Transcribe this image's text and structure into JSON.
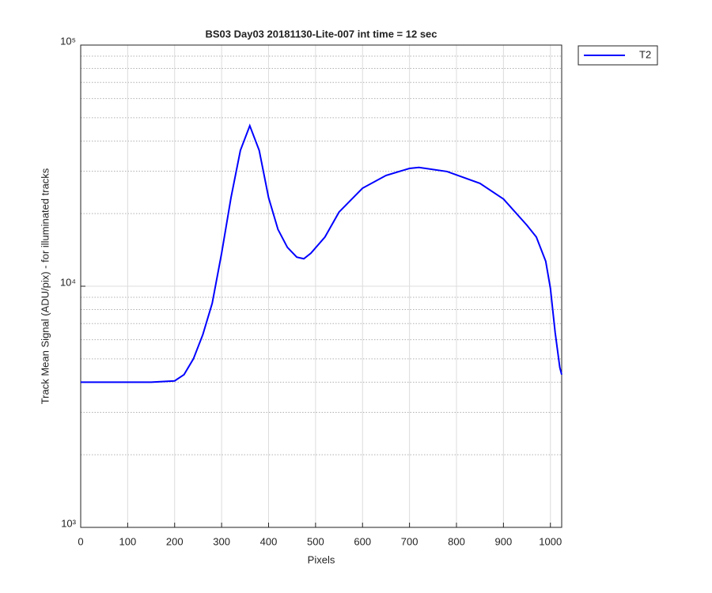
{
  "chart_data": {
    "type": "line",
    "title": "BS03 Day03 20181130-Lite-007 int time = 12 sec",
    "x_label": "Pixels",
    "y_label": "Track Mean Signal (ADU/pix) - for illuminated tracks",
    "x": [
      0,
      50,
      100,
      150,
      200,
      220,
      240,
      260,
      280,
      300,
      320,
      340,
      360,
      380,
      400,
      420,
      440,
      460,
      475,
      490,
      520,
      550,
      600,
      650,
      700,
      720,
      780,
      850,
      900,
      950,
      970,
      990,
      1000,
      1010,
      1020,
      1024
    ],
    "series": [
      {
        "name": "T2",
        "color": "#0000ff",
        "values": [
          4000,
          4000,
          4000,
          4000,
          4050,
          4300,
          5000,
          6300,
          8500,
          13700,
          23300,
          36600,
          46300,
          36600,
          23300,
          17200,
          14500,
          13200,
          13000,
          13700,
          16000,
          20300,
          25500,
          28800,
          30800,
          31100,
          29900,
          26700,
          23000,
          17900,
          16000,
          12700,
          9800,
          6450,
          4600,
          4300
        ]
      }
    ],
    "xlim": [
      0,
      1024
    ],
    "xticks": [
      0,
      100,
      200,
      300,
      400,
      500,
      600,
      700,
      800,
      900,
      1000
    ],
    "ylim": [
      1000,
      100000
    ],
    "yticks": [
      {
        "value": 1000,
        "label": "10³"
      },
      {
        "value": 10000,
        "label": "10⁴"
      },
      {
        "value": 100000,
        "label": "10⁵"
      }
    ],
    "yminorticks": [
      2000,
      3000,
      4000,
      5000,
      6000,
      7000,
      8000,
      9000,
      20000,
      30000,
      40000,
      50000,
      60000,
      70000,
      80000,
      90000
    ],
    "log_y": true,
    "grid": true,
    "minor_grid": true,
    "legend": "outside-top-right"
  }
}
